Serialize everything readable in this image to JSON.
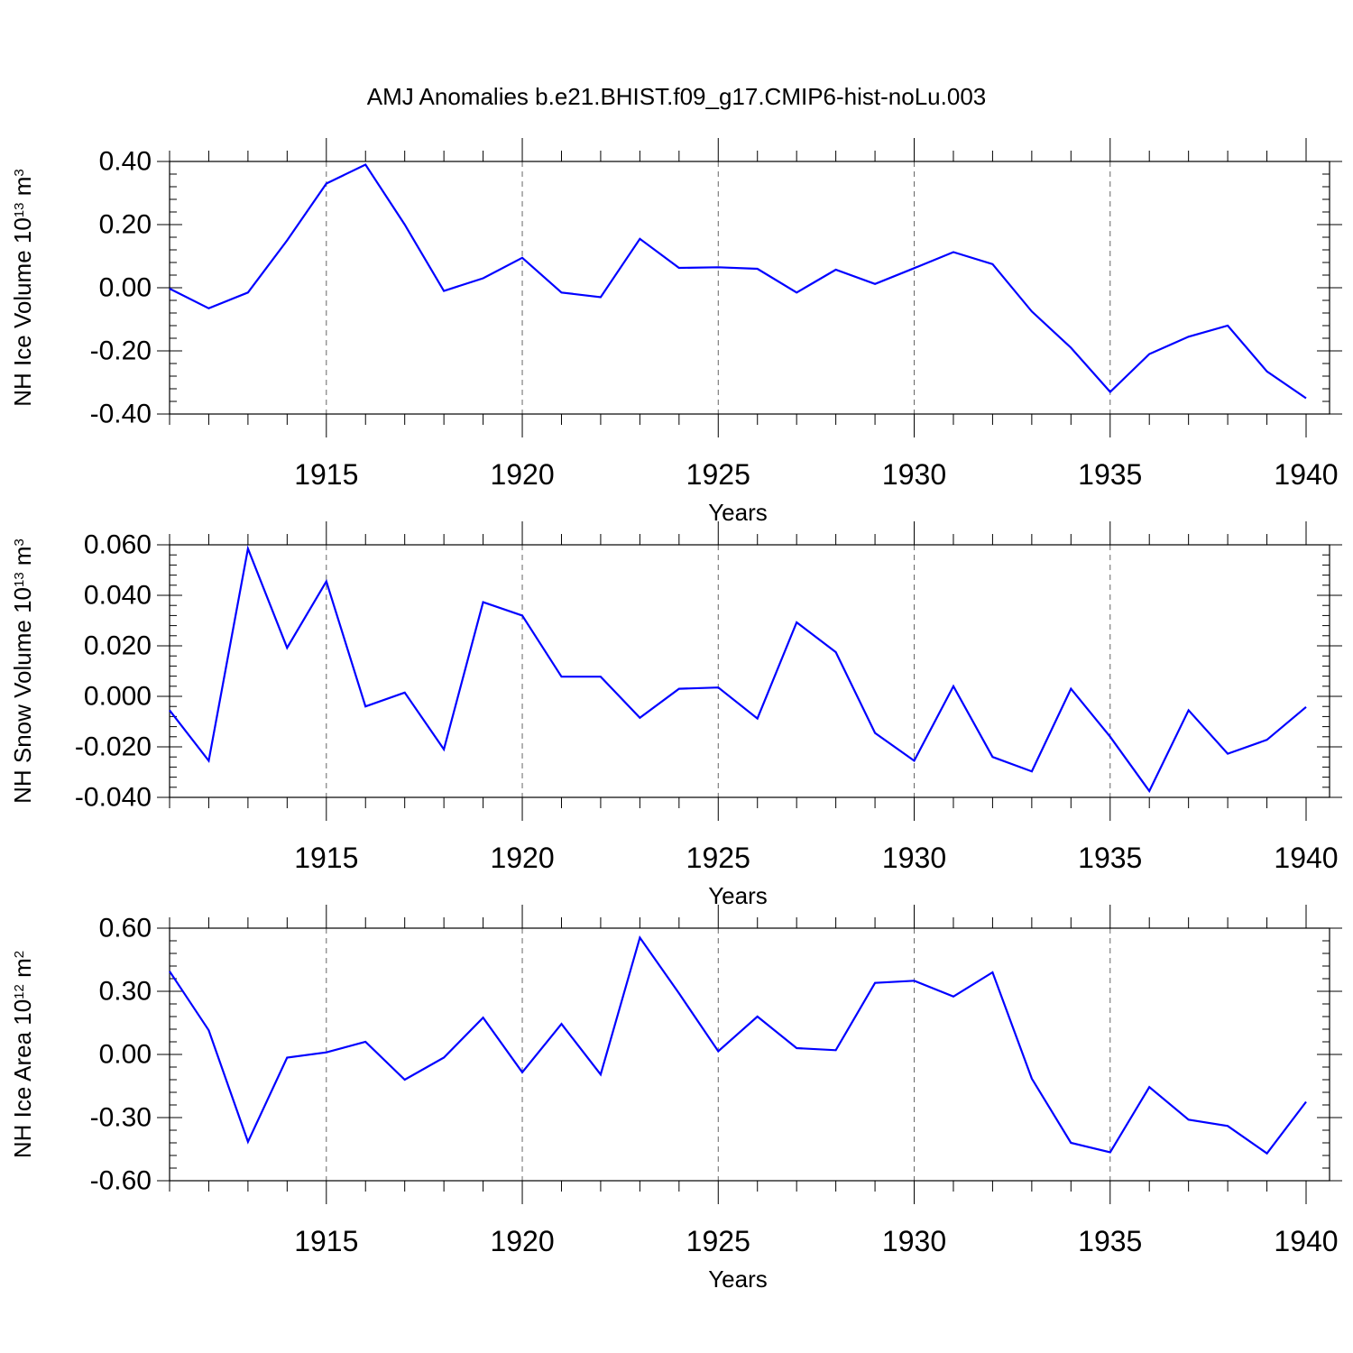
{
  "title": "AMJ Anomalies b.e21.BHIST.f09_g17.CMIP6-hist-noLu.003",
  "colors": {
    "line": "#0000ff",
    "axis": "#000000",
    "grid": "#666666"
  },
  "chart_data": [
    {
      "type": "line",
      "ylabel": "NH Ice Volume 10",
      "ylabel_exp": "13",
      "ylabel_unit": " m",
      "ylabel_unit_exp": "3",
      "xlabel": "Years",
      "xlim": [
        1911,
        1940
      ],
      "ylim": [
        -0.4,
        0.4
      ],
      "yticks": [
        -0.4,
        -0.2,
        0.0,
        0.2,
        0.4
      ],
      "ytick_labels": [
        "-0.40",
        "-0.20",
        "0.00",
        "0.20",
        "0.40"
      ],
      "xticks": [
        1915,
        1920,
        1925,
        1930,
        1935,
        1940
      ],
      "xtick_labels": [
        "1915",
        "1920",
        "1925",
        "1930",
        "1935",
        "1940"
      ],
      "grid": "vertical dashed at major x ticks",
      "x": [
        1911,
        1912,
        1913,
        1914,
        1915,
        1916,
        1917,
        1918,
        1919,
        1920,
        1921,
        1922,
        1923,
        1924,
        1925,
        1926,
        1927,
        1928,
        1929,
        1930,
        1931,
        1932,
        1933,
        1934,
        1935,
        1936,
        1937,
        1938,
        1939,
        1940
      ],
      "values": [
        -0.003,
        -0.065,
        -0.015,
        0.15,
        0.33,
        0.39,
        0.2,
        -0.01,
        0.03,
        0.095,
        -0.015,
        -0.03,
        0.155,
        0.063,
        0.065,
        0.06,
        -0.015,
        0.057,
        0.012,
        0.062,
        0.113,
        0.075,
        -0.075,
        -0.19,
        -0.33,
        -0.21,
        -0.155,
        -0.12,
        -0.265,
        -0.35
      ]
    },
    {
      "type": "line",
      "ylabel": "NH Snow Volume 10",
      "ylabel_exp": "13",
      "ylabel_unit": " m",
      "ylabel_unit_exp": "3",
      "xlabel": "Years",
      "xlim": [
        1911,
        1940
      ],
      "ylim": [
        -0.04,
        0.06
      ],
      "yticks": [
        -0.04,
        -0.02,
        0.0,
        0.02,
        0.04,
        0.06
      ],
      "ytick_labels": [
        "-0.040",
        "-0.020",
        "0.000",
        "0.020",
        "0.040",
        "0.060"
      ],
      "xticks": [
        1915,
        1920,
        1925,
        1930,
        1935,
        1940
      ],
      "xtick_labels": [
        "1915",
        "1920",
        "1925",
        "1930",
        "1935",
        "1940"
      ],
      "grid": "vertical dashed at major x ticks",
      "x": [
        1911,
        1912,
        1913,
        1914,
        1915,
        1916,
        1917,
        1918,
        1919,
        1920,
        1921,
        1922,
        1923,
        1924,
        1925,
        1926,
        1927,
        1928,
        1929,
        1930,
        1931,
        1932,
        1933,
        1934,
        1935,
        1936,
        1937,
        1938,
        1939,
        1940
      ],
      "values": [
        -0.0055,
        -0.0255,
        0.0585,
        0.0192,
        0.0455,
        -0.004,
        0.0015,
        -0.021,
        0.0373,
        0.032,
        0.0078,
        0.0078,
        -0.0085,
        0.003,
        0.0035,
        -0.0088,
        0.0293,
        0.0175,
        -0.0145,
        -0.0255,
        0.004,
        -0.024,
        -0.0297,
        0.003,
        -0.016,
        -0.0375,
        -0.0055,
        -0.0227,
        -0.0172,
        -0.0042
      ]
    },
    {
      "type": "line",
      "ylabel": "NH Ice Area 10",
      "ylabel_exp": "12",
      "ylabel_unit": " m",
      "ylabel_unit_exp": "2",
      "xlabel": "Years",
      "xlim": [
        1911,
        1940
      ],
      "ylim": [
        -0.6,
        0.6
      ],
      "yticks": [
        -0.6,
        -0.3,
        0.0,
        0.3,
        0.6
      ],
      "ytick_labels": [
        "-0.60",
        "-0.30",
        "0.00",
        "0.30",
        "0.60"
      ],
      "xticks": [
        1915,
        1920,
        1925,
        1930,
        1935,
        1940
      ],
      "xtick_labels": [
        "1915",
        "1920",
        "1925",
        "1930",
        "1935",
        "1940"
      ],
      "grid": "vertical dashed at major x ticks",
      "x": [
        1911,
        1912,
        1913,
        1914,
        1915,
        1916,
        1917,
        1918,
        1919,
        1920,
        1921,
        1922,
        1923,
        1924,
        1925,
        1926,
        1927,
        1928,
        1929,
        1930,
        1931,
        1932,
        1933,
        1934,
        1935,
        1936,
        1937,
        1938,
        1939,
        1940
      ],
      "values": [
        0.395,
        0.115,
        -0.415,
        -0.015,
        0.01,
        0.06,
        -0.12,
        -0.015,
        0.175,
        -0.085,
        0.145,
        -0.095,
        0.555,
        0.29,
        0.015,
        0.18,
        0.03,
        0.02,
        0.34,
        0.35,
        0.275,
        0.39,
        -0.115,
        -0.42,
        -0.465,
        -0.155,
        -0.31,
        -0.34,
        -0.47,
        -0.225
      ]
    }
  ]
}
